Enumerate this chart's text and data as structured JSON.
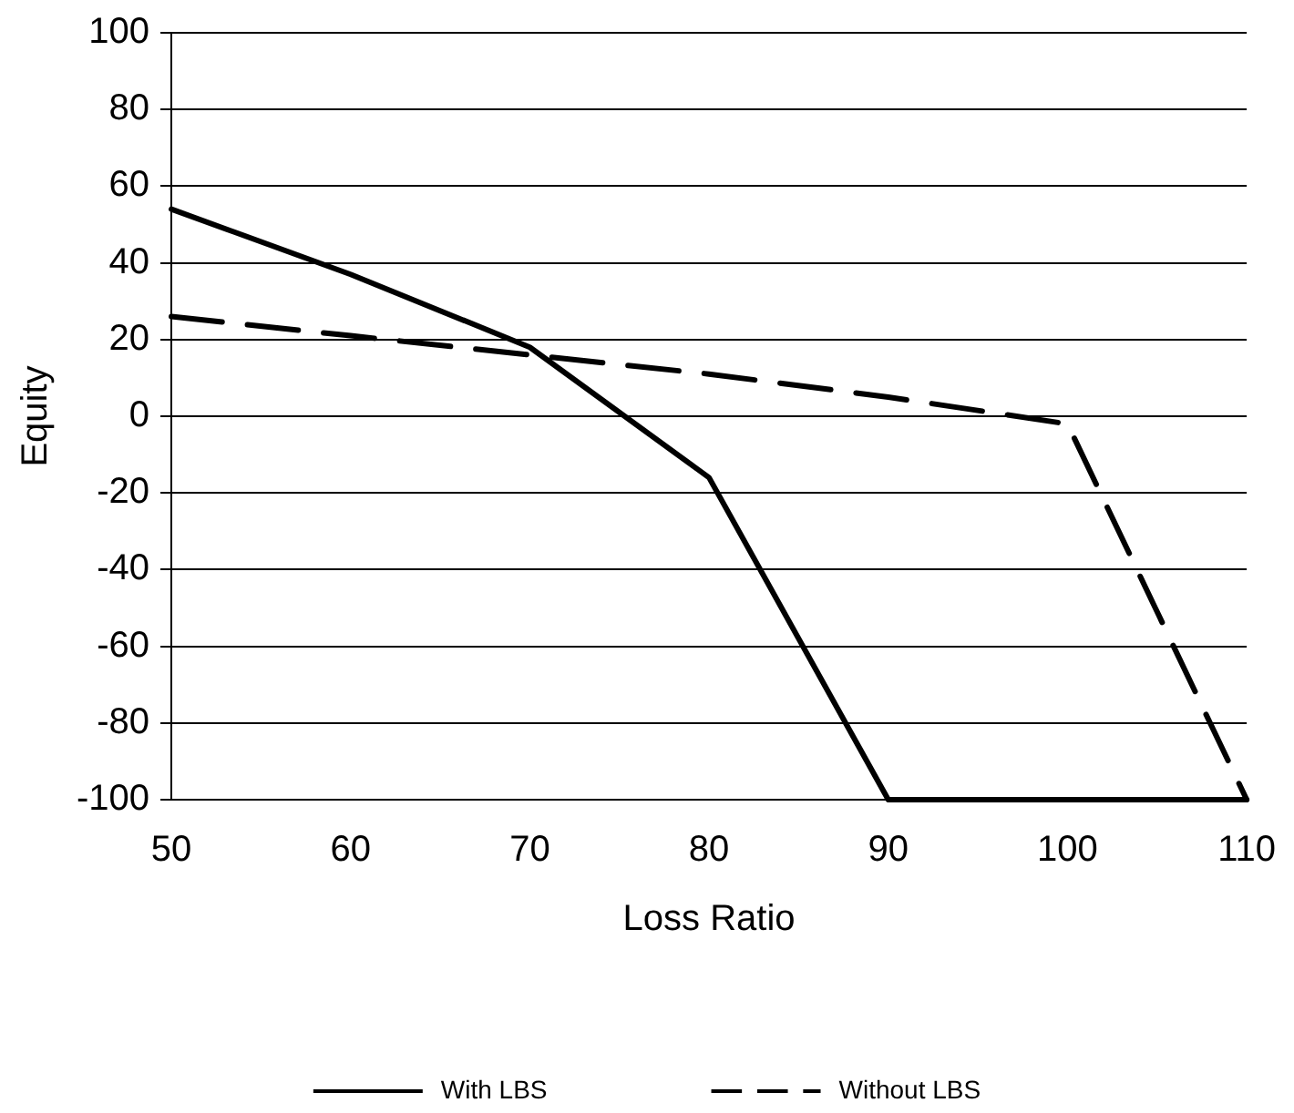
{
  "chart_data": {
    "type": "line",
    "xlabel": "Loss Ratio",
    "ylabel": "Equity",
    "x": [
      50,
      60,
      70,
      80,
      90,
      100,
      110
    ],
    "series": [
      {
        "name": "With LBS",
        "color": "#000000",
        "line_style": "solid",
        "values": [
          54,
          37,
          18,
          -16,
          -100,
          -100,
          -100
        ]
      },
      {
        "name": "Without LBS",
        "color": "#000000",
        "line_style": "dashed",
        "values": [
          26,
          21,
          16,
          11,
          5,
          -2,
          -100
        ]
      }
    ],
    "xlim": [
      50,
      110
    ],
    "xticks": [
      50,
      60,
      70,
      80,
      90,
      100,
      110
    ],
    "ylim": [
      -100,
      100
    ],
    "yticks": [
      -100,
      -80,
      -60,
      -40,
      -20,
      0,
      20,
      40,
      60,
      80,
      100
    ],
    "grid": "y",
    "legend": "bottom",
    "marker": "none"
  }
}
